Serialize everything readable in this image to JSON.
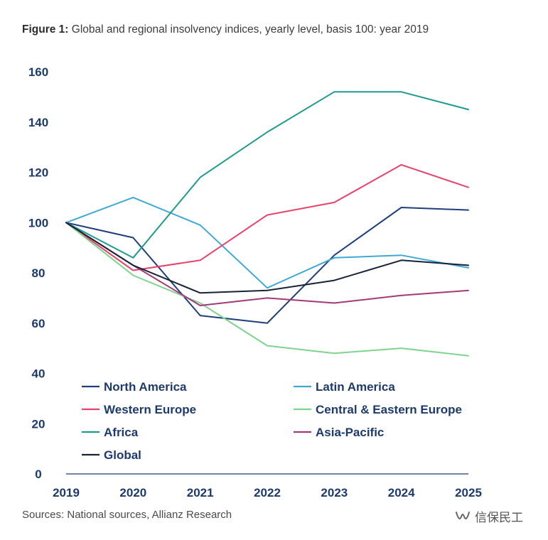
{
  "title": {
    "figure_label": "Figure 1:",
    "text": "Global and regional insolvency indices, yearly level, basis 100: year 2019"
  },
  "source": "Sources: National sources, Allianz Research",
  "watermark": {
    "icon": "wechat-channel-icon",
    "text": "信保民工"
  },
  "chart_data": {
    "type": "line",
    "title": "",
    "xlabel": "",
    "ylabel": "",
    "x": [
      "2019",
      "2020",
      "2021",
      "2022",
      "2023",
      "2024",
      "2025"
    ],
    "ylim": [
      0,
      160
    ],
    "yticks": [
      0,
      20,
      40,
      60,
      80,
      100,
      120,
      140,
      160
    ],
    "grid": false,
    "legend_position": "lower-left, two columns",
    "series": [
      {
        "name": "North America",
        "color": "#1f3f7a",
        "values": [
          100,
          94,
          63,
          60,
          87,
          106,
          105
        ]
      },
      {
        "name": "Latin America",
        "color": "#3fa9d6",
        "values": [
          100,
          110,
          99,
          74,
          86,
          87,
          82
        ]
      },
      {
        "name": "Western Europe",
        "color": "#e8416a",
        "values": [
          100,
          81,
          85,
          103,
          108,
          123,
          114
        ]
      },
      {
        "name": "Central & Eastern Europe",
        "color": "#7ed38f",
        "values": [
          100,
          79,
          68,
          51,
          48,
          50,
          47
        ]
      },
      {
        "name": "Africa",
        "color": "#1f9b8e",
        "values": [
          100,
          86,
          118,
          136,
          152,
          152,
          145
        ]
      },
      {
        "name": "Asia-Pacific",
        "color": "#a23a78",
        "values": [
          100,
          83,
          67,
          70,
          68,
          71,
          73
        ]
      },
      {
        "name": "Global",
        "color": "#162338",
        "values": [
          100,
          83,
          72,
          73,
          77,
          85,
          83
        ]
      }
    ]
  }
}
